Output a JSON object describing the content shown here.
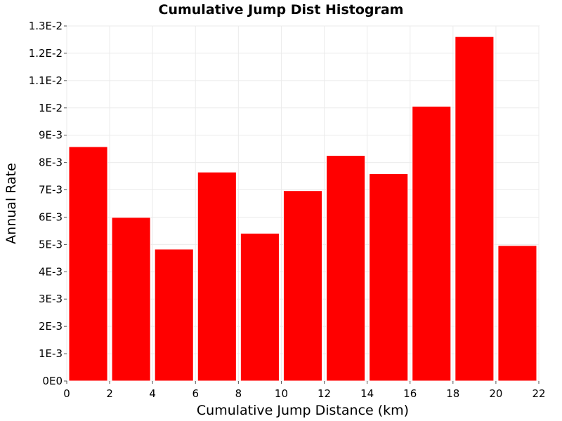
{
  "chart_data": {
    "type": "bar",
    "title": "Cumulative Jump Dist Histogram",
    "xlabel": "Cumulative Jump Distance (km)",
    "ylabel": "Annual Rate",
    "xlim": [
      0,
      22
    ],
    "ylim": [
      0,
      0.013
    ],
    "grid": true,
    "bar_color": "#ff0000",
    "x_ticks": [
      "0",
      "2",
      "4",
      "6",
      "8",
      "10",
      "12",
      "14",
      "16",
      "18",
      "20",
      "22"
    ],
    "y_ticks": [
      "0E0",
      "1E-3",
      "2E-3",
      "3E-3",
      "4E-3",
      "5E-3",
      "6E-3",
      "7E-3",
      "8E-3",
      "9E-3",
      "1E-2",
      "1.1E-2",
      "1.2E-2",
      "1.3E-2"
    ],
    "bins": [
      {
        "x_start": 0,
        "x_end": 2,
        "value": 0.00858
      },
      {
        "x_start": 2,
        "x_end": 4,
        "value": 0.00599
      },
      {
        "x_start": 4,
        "x_end": 6,
        "value": 0.00483
      },
      {
        "x_start": 6,
        "x_end": 8,
        "value": 0.00765
      },
      {
        "x_start": 8,
        "x_end": 10,
        "value": 0.00541
      },
      {
        "x_start": 10,
        "x_end": 12,
        "value": 0.00697
      },
      {
        "x_start": 12,
        "x_end": 14,
        "value": 0.00826
      },
      {
        "x_start": 14,
        "x_end": 16,
        "value": 0.00759
      },
      {
        "x_start": 16,
        "x_end": 18,
        "value": 0.01006
      },
      {
        "x_start": 18,
        "x_end": 20,
        "value": 0.01261
      },
      {
        "x_start": 20,
        "x_end": 22,
        "value": 0.00496
      }
    ]
  }
}
